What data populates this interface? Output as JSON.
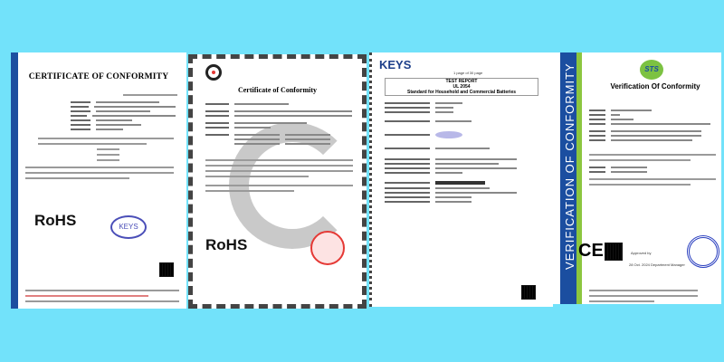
{
  "documents": [
    {
      "title": "CERTIFICATE OF CONFORMITY",
      "mark": "RoHS",
      "stamp": "KEYS"
    },
    {
      "title": "Certificate of Conformity",
      "mark": "RoHS"
    },
    {
      "logo": "KEYS",
      "page": "1 page of 30 page",
      "report_type": "TEST REPORT",
      "standard_no": "UL 2054",
      "standard_title": "Standard for Household and Commercial Batteries"
    },
    {
      "title": "Verification Of Conformity",
      "side_text": "VERIFICATION OF CONFORMITY",
      "logo": "STS",
      "mark": "CE",
      "approved_by": "Approved by",
      "date": "28 Oct. 2024",
      "role": "Department Manager"
    }
  ],
  "colors": {
    "background": "#72e2fa",
    "band_blue": "#1b4ea0",
    "band_green": "#8cc63f",
    "stamp_red": "#e53935"
  }
}
